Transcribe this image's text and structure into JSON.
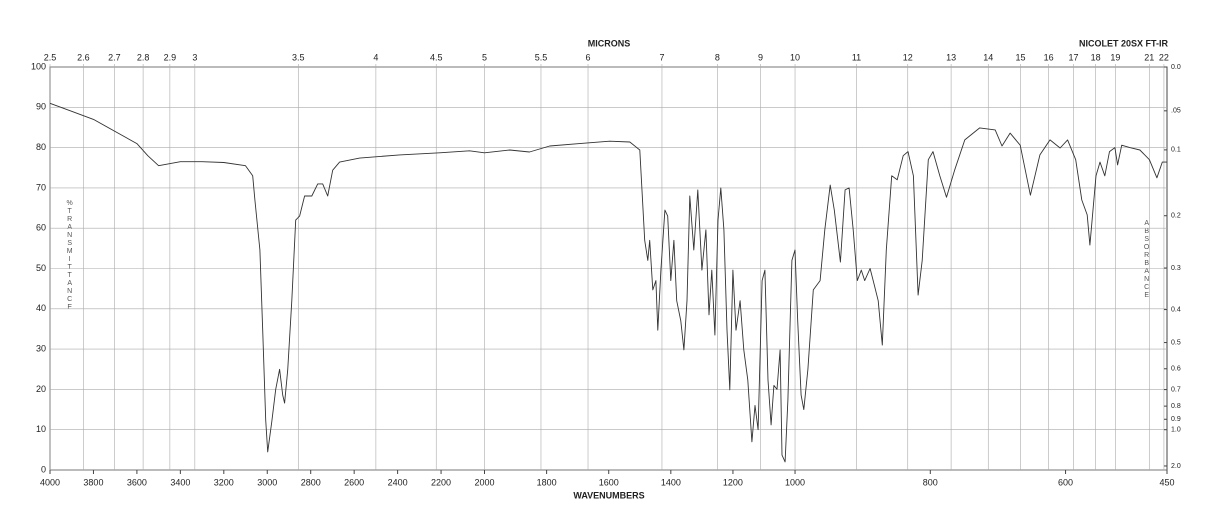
{
  "chart_data": {
    "type": "line",
    "title": "NICOLET 20SX FT-IR",
    "x_label": "WAVENUMBERS",
    "x2_label": "MICRONS",
    "y_label": "%TRANSMITTANCE",
    "y2_label": "ABSORBANCE",
    "color": "#333333",
    "grid": true,
    "xlim": [
      4000,
      450
    ],
    "xticks": [
      4000,
      3800,
      3600,
      3400,
      3200,
      3000,
      2800,
      2600,
      2400,
      2200,
      2000,
      1800,
      1600,
      1400,
      1200,
      1000,
      800,
      600,
      450
    ],
    "x2ticks": [
      2.5,
      2.6,
      2.7,
      2.8,
      2.9,
      3,
      3.5,
      4,
      4.5,
      5,
      5.5,
      6,
      7,
      8,
      9,
      10,
      11,
      12,
      13,
      14,
      15,
      16,
      17,
      18,
      19,
      21,
      22
    ],
    "ylim": [
      0,
      100
    ],
    "yticks": [
      0,
      10,
      20,
      30,
      40,
      50,
      60,
      70,
      80,
      90,
      100
    ],
    "y2ticks": [
      {
        "value": 0,
        "label": "0.0"
      },
      {
        "value": 0.05,
        "label": ".05"
      },
      {
        "value": 0.1,
        "label": "0.1"
      },
      0.2,
      0.3,
      0.4,
      0.5,
      0.6,
      0.7,
      0.8,
      0.9,
      {
        "value": 1,
        "label": "1.0"
      },
      {
        "value": 2,
        "label": "2.0"
      }
    ],
    "x": [
      4000,
      3900,
      3800,
      3700,
      3600,
      3550,
      3500,
      3450,
      3400,
      3300,
      3200,
      3100,
      3067,
      3057,
      3034,
      3021,
      3007,
      2998,
      2979,
      2961,
      2943,
      2929,
      2920,
      2906,
      2887,
      2869,
      2851,
      2828,
      2795,
      2768,
      2745,
      2722,
      2699,
      2667,
      2575,
      2391,
      2207,
      2069,
      2000,
      1919,
      1855,
      1790,
      1694,
      1597,
      1532,
      1500,
      1484,
      1474,
      1468,
      1458,
      1448,
      1442,
      1432,
      1419,
      1410,
      1400,
      1390,
      1381,
      1368,
      1358,
      1348,
      1339,
      1326,
      1313,
      1300,
      1287,
      1277,
      1268,
      1258,
      1248,
      1239,
      1229,
      1219,
      1210,
      1200,
      1190,
      1177,
      1165,
      1152,
      1139,
      1129,
      1119,
      1106,
      1097,
      1087,
      1077,
      1068,
      1058,
      1048,
      1042,
      1032,
      1023,
      1010,
      1000,
      996,
      991,
      987,
      981,
      973,
      963,
      956,
      948,
      942,
      933,
      926,
      920,
      914,
      908,
      902,
      897,
      889,
      883,
      877,
      871,
      865,
      857,
      849,
      840,
      833,
      825,
      818,
      812,
      803,
      796,
      786,
      776,
      764,
      749,
      727,
      704,
      694,
      682,
      667,
      652,
      638,
      623,
      608,
      597,
      585,
      576,
      568,
      564,
      555,
      549,
      542,
      535,
      527,
      523,
      517,
      505,
      490,
      476,
      465,
      457,
      450
    ],
    "values": [
      91,
      89,
      87,
      84,
      81,
      78,
      75.5,
      76,
      76.5,
      76.5,
      76.3,
      75.5,
      73,
      67,
      54.6,
      34.7,
      12.4,
      4.5,
      12,
      20,
      25,
      18.6,
      16.6,
      24.8,
      42,
      62,
      63,
      68,
      68,
      71,
      71,
      68,
      74.4,
      76.4,
      77.4,
      78.2,
      78.7,
      79.2,
      78.7,
      79.4,
      78.9,
      80.4,
      81,
      81.6,
      81.4,
      79.4,
      57,
      52,
      57,
      44.7,
      47,
      34.7,
      49.6,
      64.5,
      63,
      47,
      57,
      42,
      37,
      29.8,
      42,
      68,
      54.6,
      69.5,
      49.6,
      59.6,
      38.5,
      49.6,
      33.5,
      62,
      70,
      59.6,
      34.7,
      19.9,
      49.6,
      34.7,
      42,
      29.8,
      22.3,
      7,
      16,
      10,
      47,
      49.6,
      22.3,
      11.2,
      21,
      20,
      29.8,
      3.7,
      2,
      17.4,
      52,
      54.6,
      37,
      18.6,
      15,
      25,
      44.7,
      47,
      59.6,
      70.7,
      64.5,
      51.6,
      69.5,
      70,
      59.6,
      47,
      49.6,
      47,
      50,
      46,
      42,
      31,
      54.6,
      73,
      72,
      78,
      79,
      73,
      43.4,
      52,
      77,
      79,
      73,
      67.7,
      74.4,
      81.9,
      84.9,
      84.4,
      80.4,
      83.6,
      80.6,
      68.2,
      78.2,
      81.9,
      79.9,
      81.9,
      77,
      67,
      63.3,
      55.8,
      73,
      76.4,
      73,
      79,
      80,
      75.7,
      80.6,
      80,
      79.4,
      77,
      72.5,
      76.4,
      76.4
    ]
  }
}
